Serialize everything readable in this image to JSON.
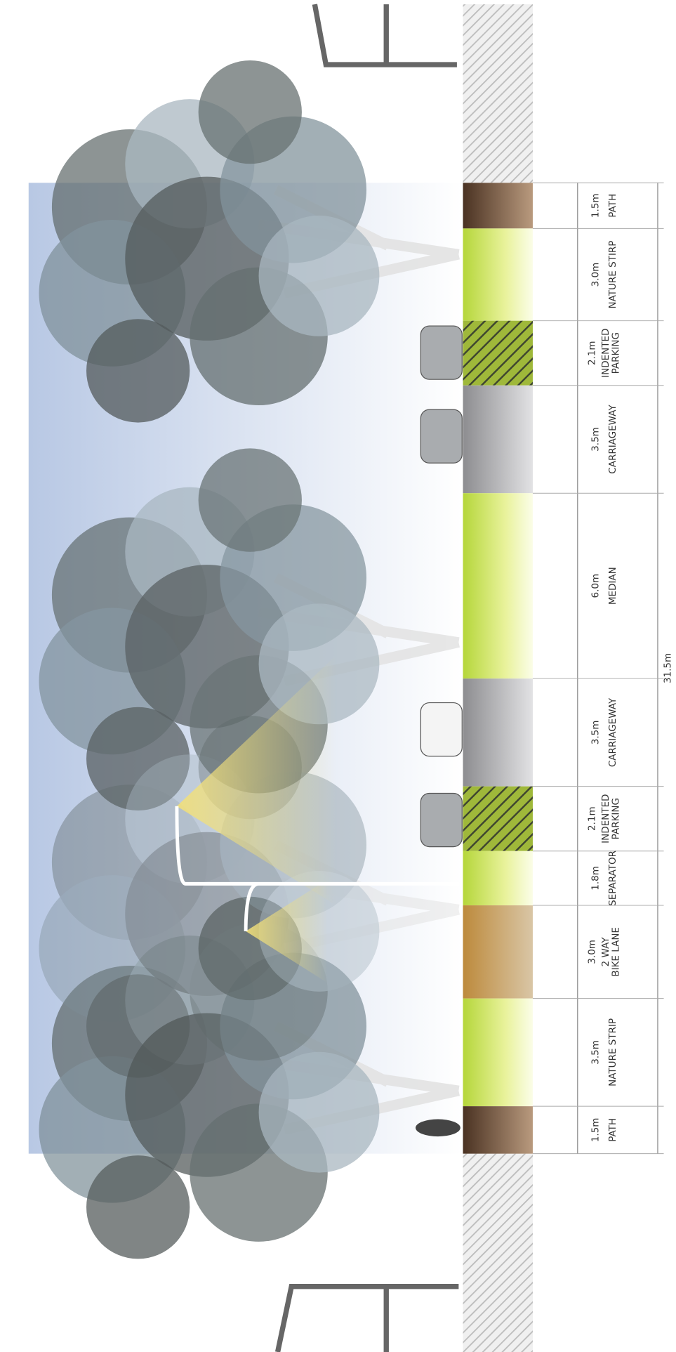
{
  "segments": [
    {
      "width": "1.5m",
      "name": [
        "PATH"
      ]
    },
    {
      "width": "3.0m",
      "name": [
        "NATURE STIRP"
      ]
    },
    {
      "width": "2.1m",
      "name": [
        "INDENTED",
        "PARKING"
      ]
    },
    {
      "width": "3.5m",
      "name": [
        "CARRIAGEWAY"
      ]
    },
    {
      "width": "6.0m",
      "name": [
        "MEDIAN"
      ]
    },
    {
      "width": "3.5m",
      "name": [
        "CARRIAGEWAY"
      ]
    },
    {
      "width": "2.1m",
      "name": [
        "INDENTED",
        "PARKING"
      ]
    },
    {
      "width": "1.8m",
      "name": [
        "SEPARATOR"
      ]
    },
    {
      "width": "3.0m",
      "name": [
        "2 WAY",
        "BIKE LANE"
      ]
    },
    {
      "width": "3.5m",
      "name": [
        "NATURE STRIP"
      ]
    },
    {
      "width": "1.5m",
      "name": [
        "PATH"
      ]
    }
  ],
  "total": "31.5m"
}
